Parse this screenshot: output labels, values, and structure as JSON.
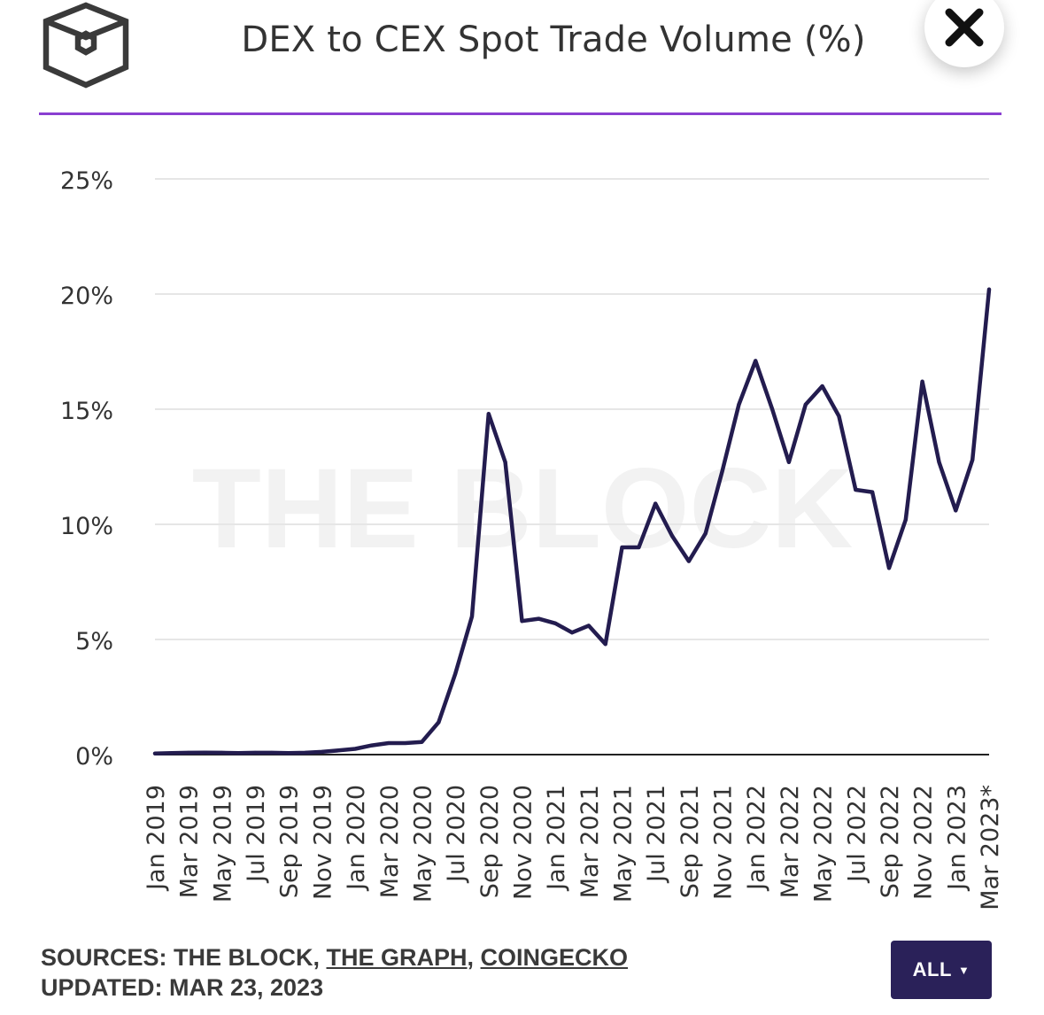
{
  "header": {
    "title": "DEX to CEX Spot Trade Volume (%)",
    "watermark": "THE BLOCK",
    "brand_color": "#8a3fd1",
    "logo_icon": "the-block-cube-logo",
    "close_icon": "close-x-icon"
  },
  "chart_data": {
    "type": "line",
    "title": "DEX to CEX Spot Trade Volume (%)",
    "xlabel": "",
    "ylabel": "",
    "ylim": [
      0,
      25
    ],
    "yticks": [
      "0%",
      "5%",
      "10%",
      "15%",
      "20%",
      "25%"
    ],
    "grid": true,
    "line_color": "#231c4f",
    "x_tick_labels": [
      "Jan 2019",
      "Mar 2019",
      "May 2019",
      "Jul 2019",
      "Sep 2019",
      "Nov 2019",
      "Jan 2020",
      "Mar 2020",
      "May 2020",
      "Jul 2020",
      "Sep 2020",
      "Nov 2020",
      "Jan 2021",
      "Mar 2021",
      "May 2021",
      "Jul 2021",
      "Sep 2021",
      "Nov 2021",
      "Jan 2022",
      "Mar 2022",
      "May 2022",
      "Jul 2022",
      "Sep 2022",
      "Nov 2022",
      "Jan 2023",
      "Mar 2023*"
    ],
    "x": [
      "Jan 2019",
      "Feb 2019",
      "Mar 2019",
      "Apr 2019",
      "May 2019",
      "Jun 2019",
      "Jul 2019",
      "Aug 2019",
      "Sep 2019",
      "Oct 2019",
      "Nov 2019",
      "Dec 2019",
      "Jan 2020",
      "Feb 2020",
      "Mar 2020",
      "Apr 2020",
      "May 2020",
      "Jun 2020",
      "Jul 2020",
      "Aug 2020",
      "Sep 2020",
      "Oct 2020",
      "Nov 2020",
      "Dec 2020",
      "Jan 2021",
      "Feb 2021",
      "Mar 2021",
      "Apr 2021",
      "May 2021",
      "Jun 2021",
      "Jul 2021",
      "Aug 2021",
      "Sep 2021",
      "Oct 2021",
      "Nov 2021",
      "Dec 2021",
      "Jan 2022",
      "Feb 2022",
      "Mar 2022",
      "Apr 2022",
      "May 2022",
      "Jun 2022",
      "Jul 2022",
      "Aug 2022",
      "Sep 2022",
      "Oct 2022",
      "Nov 2022",
      "Dec 2022",
      "Jan 2023",
      "Feb 2023",
      "Mar 2023*"
    ],
    "series": [
      {
        "values": [
          0.05,
          0.07,
          0.08,
          0.09,
          0.08,
          0.07,
          0.08,
          0.08,
          0.07,
          0.08,
          0.12,
          0.18,
          0.25,
          0.4,
          0.5,
          0.5,
          0.55,
          1.4,
          3.5,
          6.0,
          14.8,
          12.7,
          5.8,
          5.9,
          5.7,
          5.3,
          5.6,
          4.8,
          9.0,
          9.0,
          10.9,
          9.5,
          8.4,
          9.6,
          12.3,
          15.2,
          17.1,
          15.0,
          12.7,
          15.2,
          16.0,
          14.7,
          11.5,
          11.4,
          8.1,
          10.2,
          16.2,
          12.7,
          10.6,
          12.8,
          20.2
        ]
      }
    ]
  },
  "footer": {
    "sources_prefix": "SOURCES: THE BLOCK, ",
    "source_link_1": "THE GRAPH",
    "sources_sep": ", ",
    "source_link_2": "COINGECKO",
    "updated": "UPDATED: MAR 23, 2023",
    "all_button": "ALL",
    "all_caret": "▼",
    "button_color": "#2a2159"
  }
}
